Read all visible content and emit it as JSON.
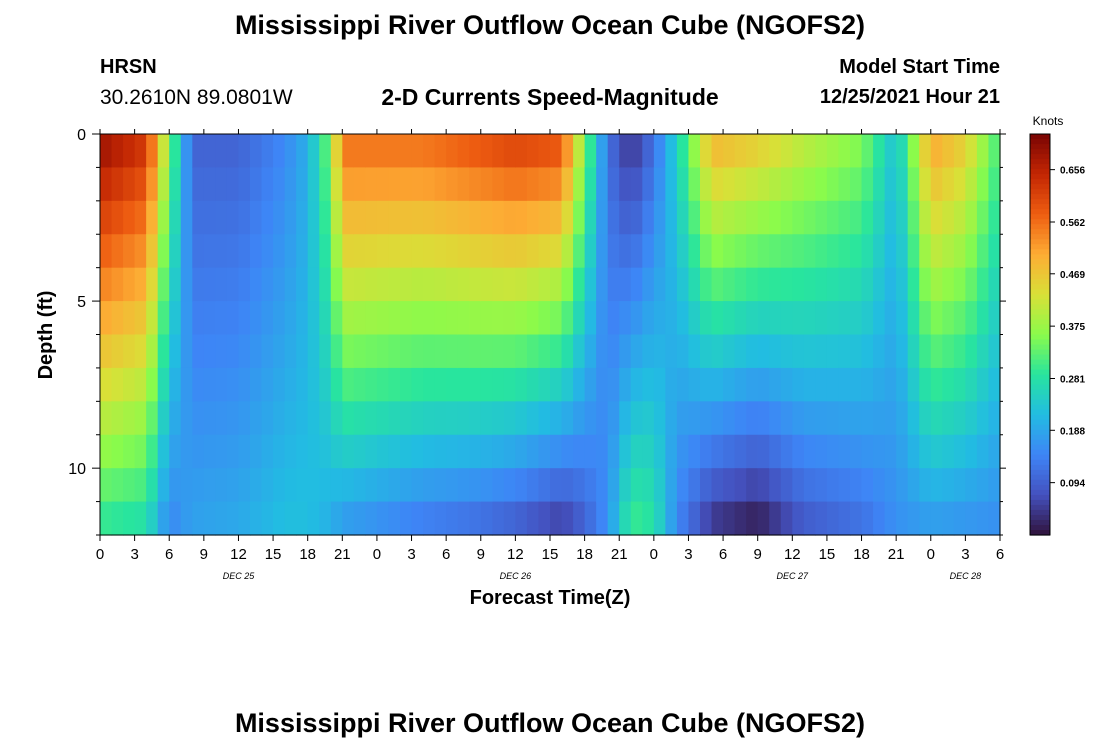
{
  "header": {
    "title": "Mississippi River Outflow Ocean Cube (NGOFS2)",
    "station": "HRSN",
    "coords": "30.2610N  89.0801W",
    "subtitle": "2-D Currents Speed-Magnitude",
    "model_start_label": "Model Start Time",
    "model_start_value": "12/25/2021 Hour 21"
  },
  "footer": {
    "title": "Mississippi River Outflow Ocean Cube (NGOFS2)"
  },
  "chart_data": {
    "type": "heatmap",
    "title": "2-D Currents Speed-Magnitude",
    "xlabel": "Forecast Time(Z)",
    "ylabel": "Depth (ft)",
    "x_range_hours": [
      0,
      78
    ],
    "x_ticks": [
      "0",
      "3",
      "6",
      "9",
      "12",
      "15",
      "18",
      "21",
      "0",
      "3",
      "6",
      "9",
      "12",
      "15",
      "18",
      "21",
      "0",
      "3",
      "6",
      "9",
      "12",
      "15",
      "18",
      "21",
      "0",
      "3",
      "6"
    ],
    "date_labels": [
      {
        "label": "DEC 25",
        "hour": 12
      },
      {
        "label": "DEC 26",
        "hour": 36
      },
      {
        "label": "DEC 27",
        "hour": 60
      },
      {
        "label": "DEC 28",
        "hour": 75
      }
    ],
    "y_range": [
      0,
      12
    ],
    "y_ticks": [
      0,
      5,
      10
    ],
    "colorbar": {
      "label": "Knots",
      "min": 0.0,
      "max": 0.72,
      "ticks": [
        "0.656",
        "0.562",
        "0.469",
        "0.375",
        "0.281",
        "0.188",
        "0.094"
      ],
      "tick_values": [
        0.656,
        0.562,
        0.469,
        0.375,
        0.281,
        0.188,
        0.094
      ]
    },
    "depth_layers": 12,
    "keyframes": [
      {
        "hour": 0,
        "speed_top": 0.68,
        "speed_bottom": 0.3
      },
      {
        "hour": 4,
        "speed_top": 0.62,
        "speed_bottom": 0.28
      },
      {
        "hour": 6,
        "speed_top": 0.35,
        "speed_bottom": 0.15
      },
      {
        "hour": 8,
        "speed_top": 0.1,
        "speed_bottom": 0.18
      },
      {
        "hour": 12,
        "speed_top": 0.1,
        "speed_bottom": 0.19
      },
      {
        "hour": 16,
        "speed_top": 0.15,
        "speed_bottom": 0.22
      },
      {
        "hour": 18,
        "speed_top": 0.2,
        "speed_bottom": 0.22
      },
      {
        "hour": 20,
        "speed_top": 0.35,
        "speed_bottom": 0.2
      },
      {
        "hour": 21,
        "speed_top": 0.55,
        "speed_bottom": 0.18
      },
      {
        "hour": 28,
        "speed_top": 0.55,
        "speed_bottom": 0.14
      },
      {
        "hour": 33,
        "speed_top": 0.58,
        "speed_bottom": 0.12
      },
      {
        "hour": 36,
        "speed_top": 0.6,
        "speed_bottom": 0.1
      },
      {
        "hour": 40,
        "speed_top": 0.58,
        "speed_bottom": 0.06
      },
      {
        "hour": 42,
        "speed_top": 0.35,
        "speed_bottom": 0.1
      },
      {
        "hour": 44,
        "speed_top": 0.12,
        "speed_bottom": 0.16
      },
      {
        "hour": 46,
        "speed_top": 0.04,
        "speed_bottom": 0.3
      },
      {
        "hour": 48,
        "speed_top": 0.12,
        "speed_bottom": 0.28
      },
      {
        "hour": 50,
        "speed_top": 0.25,
        "speed_bottom": 0.15
      },
      {
        "hour": 53,
        "speed_top": 0.48,
        "speed_bottom": 0.05
      },
      {
        "hour": 57,
        "speed_top": 0.45,
        "speed_bottom": 0.02
      },
      {
        "hour": 61,
        "speed_top": 0.4,
        "speed_bottom": 0.09
      },
      {
        "hour": 66,
        "speed_top": 0.35,
        "speed_bottom": 0.12
      },
      {
        "hour": 69,
        "speed_top": 0.22,
        "speed_bottom": 0.16
      },
      {
        "hour": 72,
        "speed_top": 0.5,
        "speed_bottom": 0.18
      },
      {
        "hour": 75,
        "speed_top": 0.45,
        "speed_bottom": 0.17
      },
      {
        "hour": 78,
        "speed_top": 0.3,
        "speed_bottom": 0.16
      }
    ]
  }
}
